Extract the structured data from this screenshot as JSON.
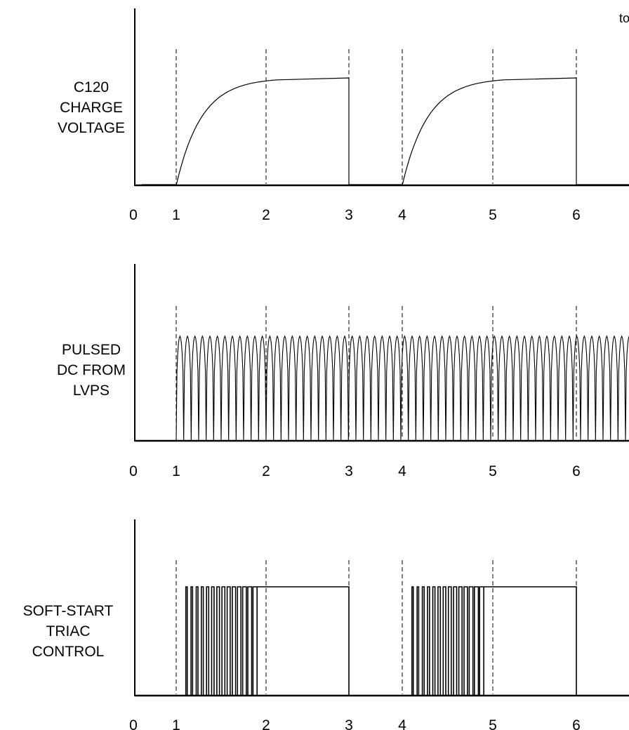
{
  "corner_text": "to",
  "panels": [
    {
      "id": "charge",
      "label_lines": [
        "C120",
        "CHARGE",
        "VOLTAGE"
      ],
      "waveform": "rc_charge",
      "segments": [
        {
          "rise_start": 1,
          "plateau_from": 2,
          "drop_at": 3
        },
        {
          "rise_start": 4,
          "plateau_from": 5,
          "drop_at": 6
        }
      ]
    },
    {
      "id": "pulsed",
      "label_lines": [
        "PULSED",
        "DC FROM",
        "LVPS"
      ],
      "waveform": "rectified_sine",
      "start": 1,
      "pulses_per_unit": 12
    },
    {
      "id": "triac",
      "label_lines": [
        "SOFT-START",
        "TRIAC",
        "CONTROL"
      ],
      "waveform": "soft_start",
      "segments": [
        {
          "start": 1,
          "burst_end": 1.9,
          "full_from": 2,
          "end": 3
        },
        {
          "start": 4,
          "burst_end": 4.9,
          "full_from": 5,
          "end": 6
        }
      ]
    }
  ],
  "x_ticks": [
    "0",
    "1",
    "2",
    "3",
    "4",
    "5",
    "6"
  ],
  "dashed_markers": [
    1,
    2,
    3,
    4,
    5,
    6
  ]
}
